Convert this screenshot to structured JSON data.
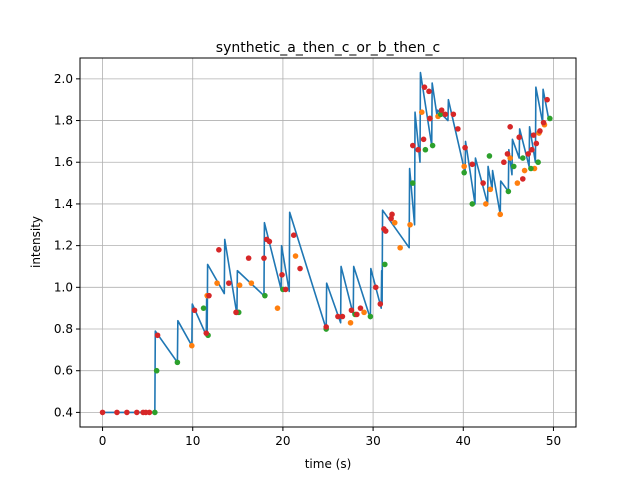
{
  "chart_data": {
    "type": "line",
    "title": "synthetic_a_then_c_or_b_then_c",
    "xlabel": "time (s)",
    "ylabel": "intensity",
    "xlim": [
      -2.5,
      52.5
    ],
    "ylim": [
      0.33,
      2.1
    ],
    "grid": true,
    "xticks": [
      0,
      10,
      20,
      30,
      40,
      50
    ],
    "yticks": [
      0.4,
      0.6,
      0.8,
      1.0,
      1.2,
      1.4,
      1.6,
      1.8,
      2.0
    ],
    "xtick_labels": [
      "0",
      "10",
      "20",
      "30",
      "40",
      "50"
    ],
    "ytick_labels": [
      "0.4",
      "0.6",
      "0.8",
      "1.0",
      "1.2",
      "1.4",
      "1.6",
      "1.8",
      "2.0"
    ],
    "colors": {
      "line": "#1f77b4",
      "orange": "#ff7f0e",
      "green": "#2ca02c",
      "red": "#d62728"
    },
    "line_series": {
      "x": [
        0,
        1.6,
        2.7,
        3.8,
        4.5,
        4.8,
        5.2,
        5.8,
        5.85,
        8.3,
        8.35,
        9.9,
        9.95,
        11.5,
        11.55,
        11.6,
        11.65,
        13.5,
        13.55,
        14.9,
        14.95,
        17.9,
        17.95,
        19.8,
        19.85,
        20.7,
        20.75,
        24.8,
        24.85,
        26.4,
        26.45,
        27.8,
        27.85,
        29.7,
        29.75,
        30.9,
        30.95,
        31.0,
        31.05,
        34.0,
        34.05,
        34.6,
        34.65,
        35.2,
        35.25,
        36.5,
        36.55,
        37.1,
        37.15,
        38.3,
        38.35,
        40.2,
        40.25,
        41.3,
        41.35,
        42.7,
        42.75,
        43.2,
        43.25,
        44.1,
        44.15,
        45.0,
        45.05,
        45.4,
        45.45,
        46.2,
        46.25,
        47.3,
        47.35,
        48.0,
        48.05,
        48.8,
        48.85,
        49.5
      ],
      "y": [
        0.4,
        0.4,
        0.4,
        0.4,
        0.4,
        0.4,
        0.4,
        0.4,
        0.79,
        0.64,
        0.84,
        0.72,
        0.92,
        0.77,
        0.97,
        0.77,
        1.11,
        0.97,
        1.23,
        0.87,
        1.08,
        0.96,
        1.31,
        0.99,
        1.2,
        0.98,
        1.36,
        0.8,
        1.02,
        0.83,
        1.1,
        0.87,
        1.1,
        0.85,
        1.09,
        0.9,
        1.08,
        0.92,
        1.37,
        1.19,
        1.57,
        1.3,
        1.84,
        1.6,
        2.03,
        1.68,
        1.98,
        1.82,
        1.85,
        1.8,
        1.9,
        1.55,
        1.7,
        1.4,
        1.62,
        1.4,
        1.58,
        1.47,
        1.56,
        1.35,
        1.51,
        1.46,
        1.66,
        1.54,
        1.71,
        1.62,
        1.76,
        1.58,
        1.77,
        1.6,
        1.96,
        1.79,
        1.95,
        1.8
      ]
    },
    "markers": {
      "red": {
        "x": [
          0,
          1.6,
          2.7,
          3.8,
          4.5,
          4.8,
          5.2,
          6.1,
          10.2,
          11.5,
          11.8,
          12.9,
          14.0,
          14.8,
          16.2,
          17.9,
          18.2,
          18.5,
          19.9,
          20.3,
          21.2,
          21.9,
          24.8,
          26.1,
          26.6,
          27.6,
          28.2,
          28.6,
          30.3,
          30.8,
          31.2,
          31.4,
          32.0,
          32.1,
          34.4,
          35.0,
          35.6,
          35.7,
          36.2,
          36.3,
          37.6,
          38.0,
          38.9,
          39.4,
          40.2,
          41.0,
          42.2,
          44.5,
          44.9,
          45.2,
          46.2,
          46.6,
          47.2,
          47.6,
          47.8,
          48.1,
          48.5,
          48.9,
          49.3
        ],
        "y": [
          0.4,
          0.4,
          0.4,
          0.4,
          0.4,
          0.4,
          0.4,
          0.77,
          0.89,
          0.78,
          0.96,
          1.18,
          1.02,
          0.88,
          1.14,
          1.14,
          1.23,
          1.22,
          1.06,
          0.99,
          1.25,
          1.09,
          0.81,
          0.86,
          0.86,
          0.89,
          0.87,
          0.9,
          1.0,
          0.92,
          1.28,
          1.27,
          1.33,
          1.35,
          1.68,
          1.66,
          1.71,
          1.96,
          1.94,
          1.81,
          1.85,
          1.83,
          1.83,
          1.76,
          1.67,
          1.59,
          1.5,
          1.6,
          1.64,
          1.77,
          1.72,
          1.52,
          1.64,
          1.66,
          1.73,
          1.69,
          1.75,
          1.79,
          1.9
        ]
      },
      "orange": {
        "x": [
          9.9,
          11.6,
          12.7,
          15.2,
          16.5,
          19.4,
          21.4,
          27.5,
          29.0,
          32.4,
          33.0,
          34.1,
          35.4,
          36.3,
          37.2,
          40.1,
          42.5,
          43.0,
          44.1,
          45.2,
          46.0,
          46.8,
          47.9,
          48.4,
          49.0
        ],
        "y": [
          0.72,
          0.96,
          1.02,
          1.01,
          1.02,
          0.9,
          1.15,
          0.83,
          0.88,
          1.31,
          1.19,
          1.3,
          1.84,
          1.81,
          1.82,
          1.58,
          1.4,
          1.47,
          1.35,
          1.62,
          1.5,
          1.56,
          1.57,
          1.74,
          1.78
        ]
      },
      "green": {
        "x": [
          5.8,
          6.0,
          8.3,
          11.2,
          11.7,
          15.1,
          18.0,
          20.0,
          24.8,
          28.0,
          29.7,
          31.3,
          34.4,
          35.8,
          36.6,
          37.5,
          40.1,
          41.0,
          42.9,
          45.0,
          45.6,
          46.6,
          47.5,
          48.3,
          49.6
        ],
        "y": [
          0.4,
          0.6,
          0.64,
          0.9,
          0.77,
          0.88,
          0.96,
          0.99,
          0.8,
          0.87,
          0.86,
          1.11,
          1.5,
          1.66,
          1.68,
          1.83,
          1.55,
          1.4,
          1.63,
          1.46,
          1.58,
          1.62,
          1.57,
          1.6,
          1.81
        ]
      }
    }
  }
}
